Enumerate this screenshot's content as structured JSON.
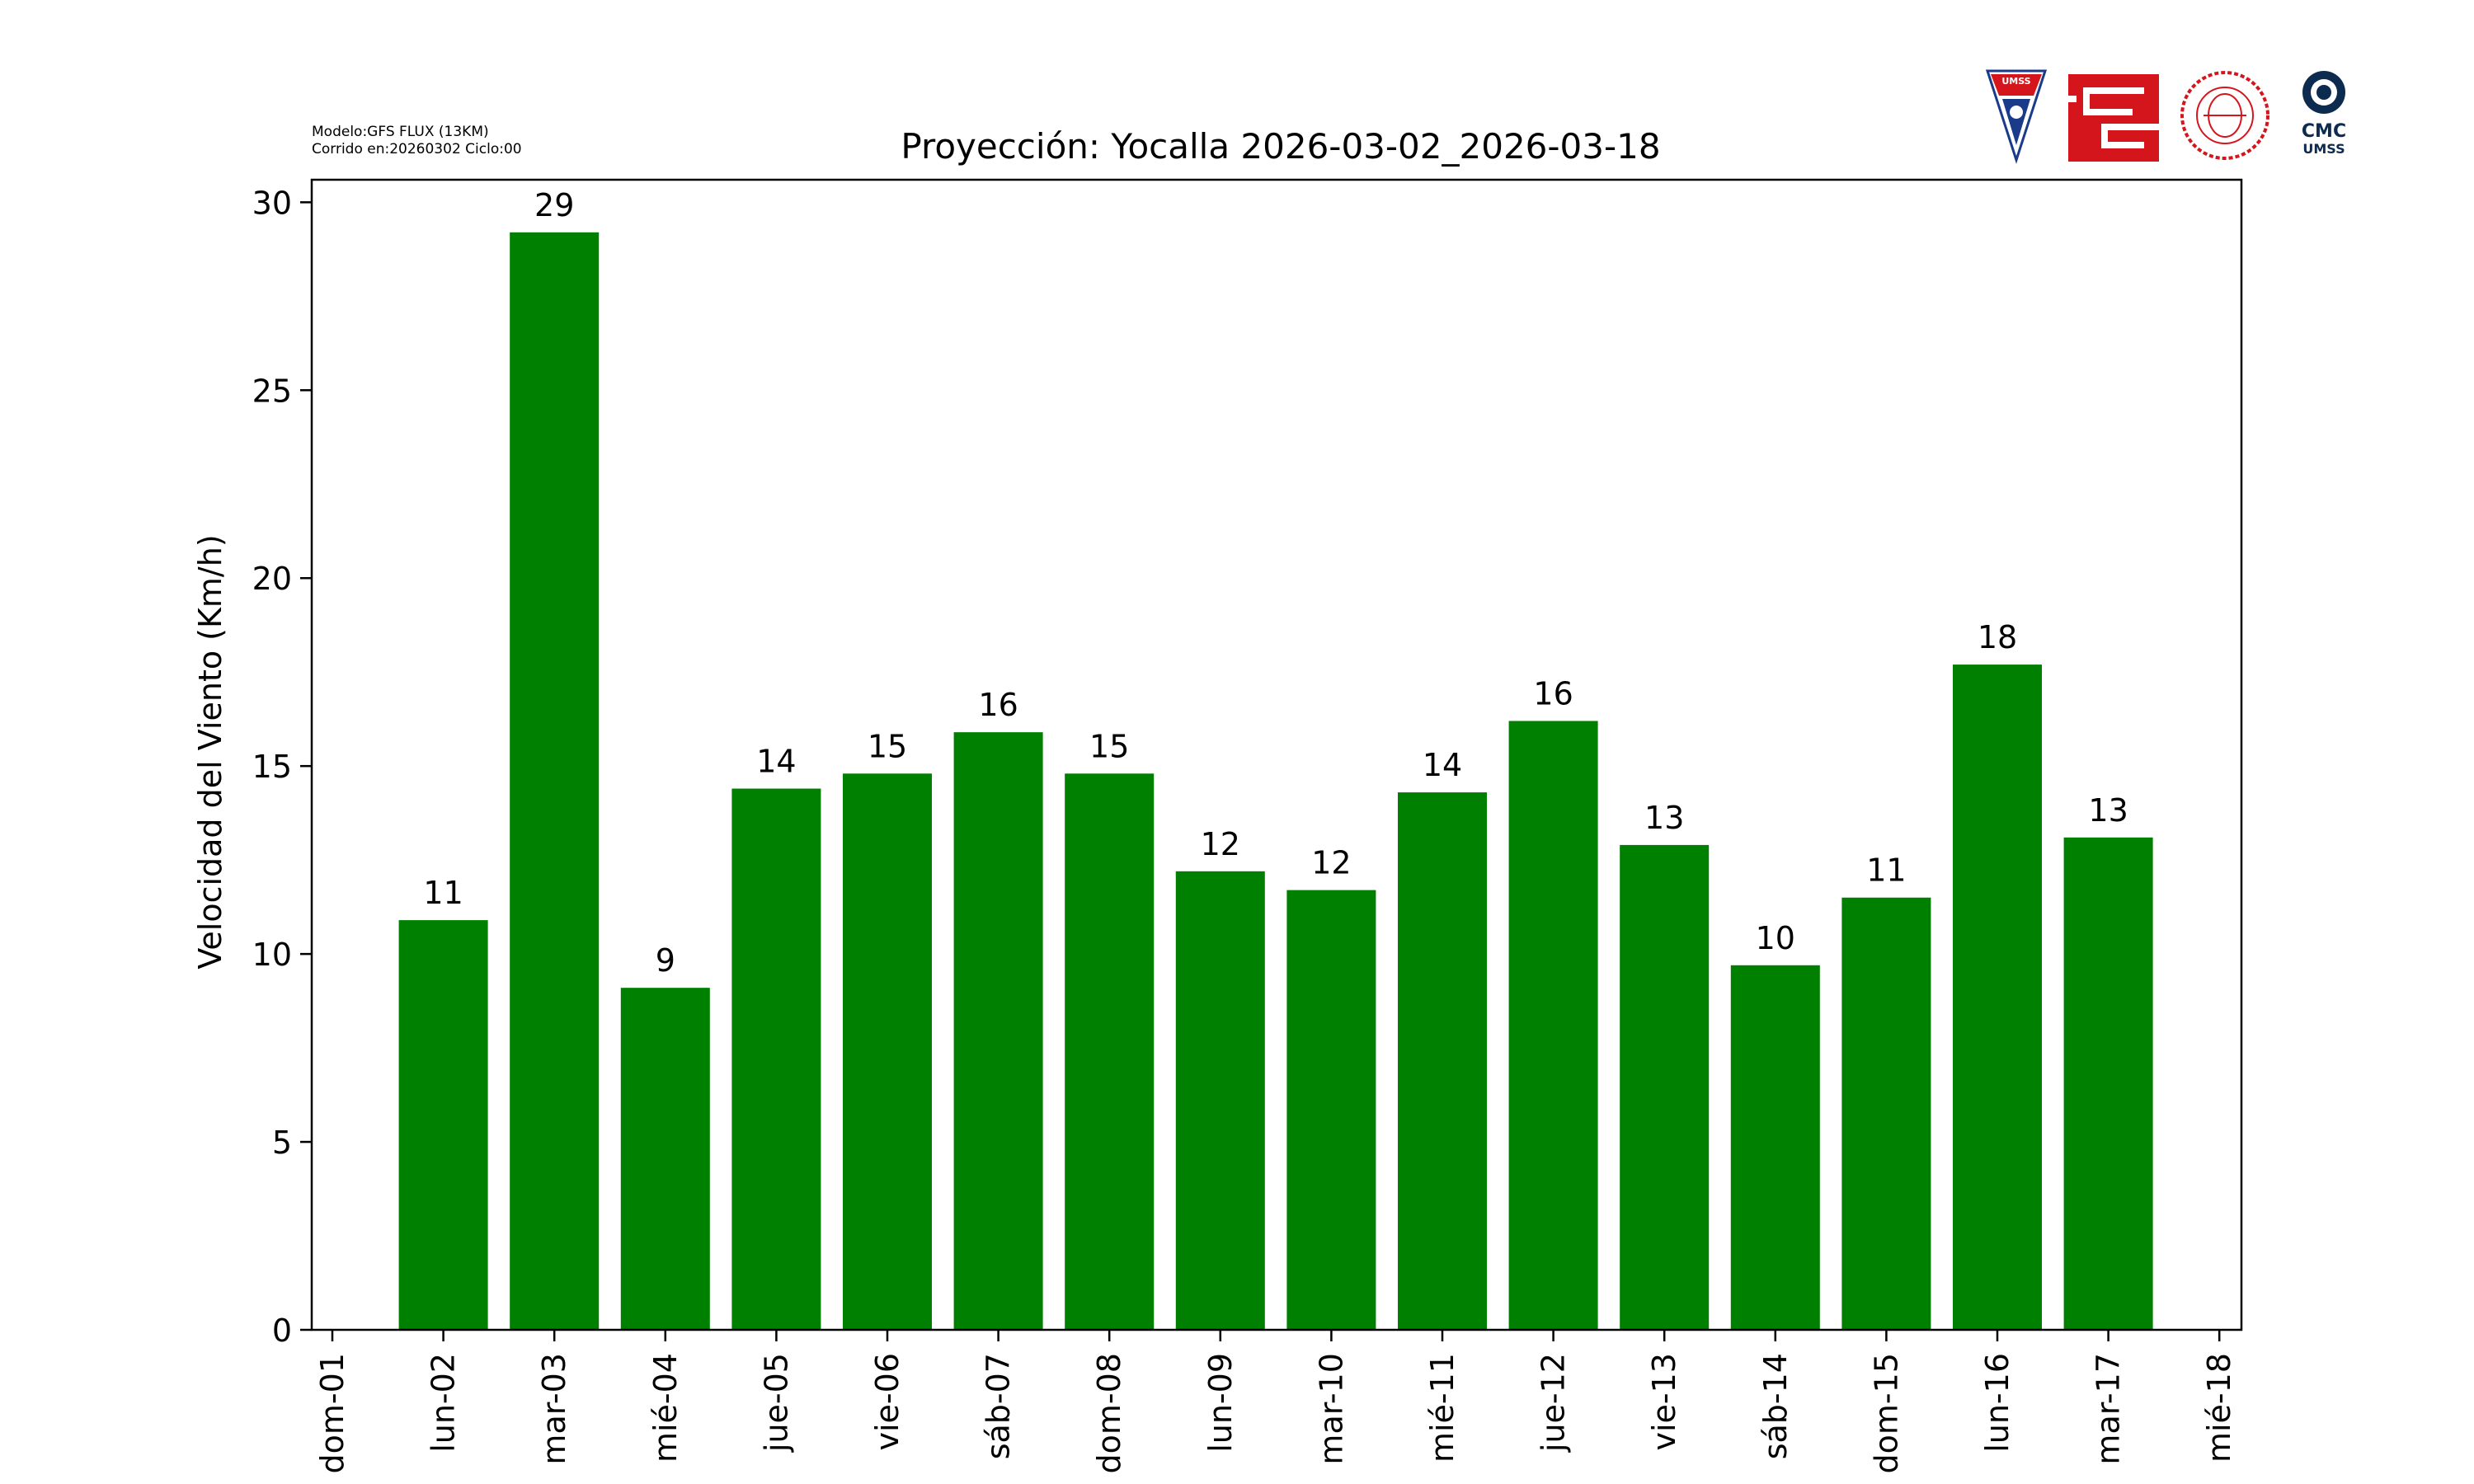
{
  "model_info": {
    "line1": "Modelo:GFS FLUX (13KM)",
    "line2": "Corrido en:20260302 Ciclo:00"
  },
  "logos": {
    "umss_text": "UMSS",
    "cmc_text": "CMC",
    "cmc_sub": "UMSS"
  },
  "colors": {
    "bar": "#008000",
    "umss_red": "#d4161c",
    "umss_blue": "#1a3a8a",
    "fcyt_red": "#d4161c",
    "cmc_navy": "#0d2a4f"
  },
  "chart_data": {
    "type": "bar",
    "title": "Proyección: Yocalla  2026-03-02_2026-03-18",
    "ylabel": "Velocidad del Viento (Km/h)",
    "xlabel": "",
    "ylim": [
      0,
      30.6
    ],
    "yticks": [
      0,
      5,
      10,
      15,
      20,
      25,
      30
    ],
    "xtick_labels": [
      "dom-01",
      "lun-02",
      "mar-03",
      "mié-04",
      "jue-05",
      "vie-06",
      "sáb-07",
      "dom-08",
      "lun-09",
      "mar-10",
      "mié-11",
      "jue-12",
      "vie-13",
      "sáb-14",
      "dom-15",
      "lun-16",
      "mar-17",
      "mié-18"
    ],
    "bar_tick_indices": [
      1,
      2,
      3,
      4,
      5,
      6,
      7,
      8,
      9,
      10,
      11,
      12,
      13,
      14,
      15,
      16
    ],
    "values": [
      10.9,
      29.2,
      9.1,
      14.4,
      14.8,
      15.9,
      14.8,
      12.2,
      11.7,
      14.3,
      16.2,
      12.9,
      9.7,
      11.5,
      17.7,
      13.1
    ],
    "data_labels": [
      "11",
      "29",
      "9",
      "14",
      "15",
      "16",
      "15",
      "12",
      "12",
      "14",
      "16",
      "13",
      "10",
      "11",
      "18",
      "13"
    ],
    "grid": false,
    "legend": false
  }
}
